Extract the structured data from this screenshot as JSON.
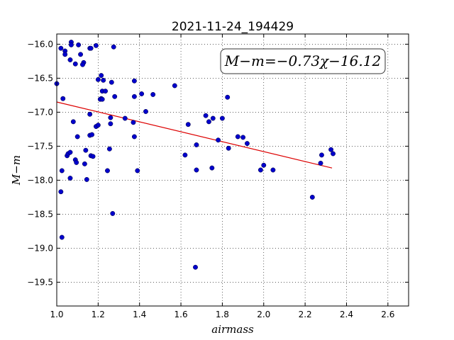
{
  "chart_data": {
    "type": "scatter",
    "title": "2021-11-24_194429",
    "xlabel": "airmass",
    "ylabel": "M−m",
    "xlim": [
      1.0,
      2.7
    ],
    "ylim": [
      -19.85,
      -15.85
    ],
    "ylim_inverted": true,
    "xticks": [
      1.0,
      1.2,
      1.4,
      1.6,
      1.8,
      2.0,
      2.2,
      2.4,
      2.6
    ],
    "xtick_labels": [
      "1.0",
      "1.2",
      "1.4",
      "1.6",
      "1.8",
      "2.0",
      "2.2",
      "2.4",
      "2.6"
    ],
    "yticks": [
      -16.0,
      -16.5,
      -17.0,
      -17.5,
      -18.0,
      -18.5,
      -19.0,
      -19.5
    ],
    "ytick_labels": [
      "−16.0",
      "−16.5",
      "−17.0",
      "−17.5",
      "−18.0",
      "−18.5",
      "−19.0",
      "−19.5"
    ],
    "grid": true,
    "annotation": "M−m=−0.73χ−16.12",
    "colors": {
      "points": "#0000cc",
      "fit": "#dd0000"
    },
    "fit": {
      "slope": -0.73,
      "intercept": -16.12,
      "x_range": [
        1.0,
        2.33
      ]
    },
    "x": [
      1.0,
      1.02,
      1.04,
      1.04,
      1.065,
      1.07,
      1.07,
      1.09,
      1.105,
      1.115,
      1.13,
      1.125,
      1.16,
      1.165,
      1.19,
      1.03,
      1.2,
      1.215,
      1.225,
      1.22,
      1.215,
      1.235,
      1.265,
      1.275,
      1.28,
      1.21,
      1.22,
      1.16,
      1.08,
      1.1,
      1.19,
      1.2,
      1.16,
      1.17,
      1.33,
      1.37,
      1.26,
      1.26,
      1.375,
      1.375,
      1.41,
      1.43,
      1.465,
      1.375,
      1.57,
      1.635,
      1.72,
      1.735,
      1.755,
      1.8,
      1.825,
      1.875,
      1.9,
      1.92,
      1.78,
      1.83,
      1.675,
      1.62,
      1.75,
      1.675,
      1.985,
      2.0,
      2.045,
      2.28,
      2.275,
      2.325,
      2.335,
      2.235,
      1.67,
      1.05,
      1.055,
      1.065,
      1.14,
      1.165,
      1.175,
      1.09,
      1.095,
      1.255,
      1.135,
      1.025,
      1.245,
      1.39,
      1.145,
      1.065,
      1.02,
      1.27,
      1.025
    ],
    "y": [
      -16.58,
      -16.06,
      -16.1,
      -16.15,
      -16.23,
      -15.97,
      -16.01,
      -16.29,
      -16.01,
      -16.15,
      -16.27,
      -16.3,
      -16.06,
      -16.06,
      -16.02,
      -16.8,
      -16.52,
      -16.46,
      -16.53,
      -16.69,
      -16.8,
      -16.69,
      -16.56,
      -16.04,
      -16.77,
      -16.81,
      -16.81,
      -17.03,
      -17.14,
      -17.36,
      -17.21,
      -17.19,
      -17.34,
      -17.33,
      -17.09,
      -17.15,
      -17.08,
      -17.17,
      -17.36,
      -16.77,
      -16.73,
      -16.99,
      -16.74,
      -16.54,
      -16.61,
      -17.18,
      -17.05,
      -17.14,
      -17.09,
      -17.09,
      -16.78,
      -17.36,
      -17.37,
      -17.46,
      -17.41,
      -17.53,
      -17.48,
      -17.63,
      -17.82,
      -17.85,
      -17.85,
      -17.78,
      -17.85,
      -17.63,
      -17.75,
      -17.55,
      -17.61,
      -18.25,
      -19.28,
      -17.64,
      -17.61,
      -17.59,
      -17.56,
      -17.64,
      -17.65,
      -17.7,
      -17.74,
      -17.54,
      -17.76,
      -17.86,
      -17.86,
      -17.86,
      -17.99,
      -17.97,
      -18.17,
      -18.49,
      -18.84
    ]
  }
}
